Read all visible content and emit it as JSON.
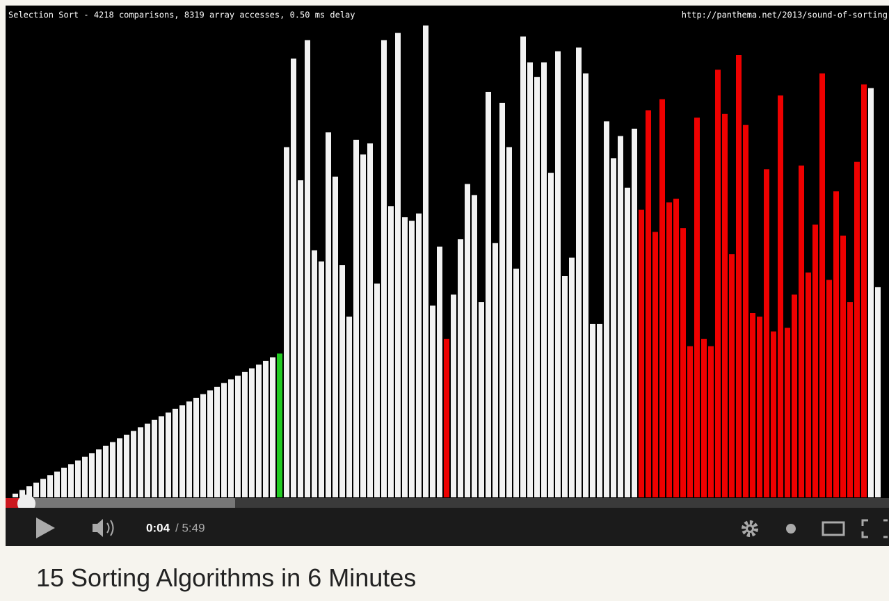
{
  "video": {
    "overlay_title": "Selection Sort - 4218 comparisons, 8319 array accesses, 0.50 ms delay",
    "overlay_url": "http://panthema.net/2013/sound-of-sorting",
    "bars": [
      {
        "color": "#f2f2f2",
        "values": [
          1,
          2,
          3,
          4,
          5,
          6,
          7,
          8,
          9,
          10,
          11,
          12,
          13,
          14,
          15,
          16,
          17,
          18,
          19,
          20,
          21,
          22,
          23,
          24,
          25,
          26,
          27,
          28,
          29,
          30,
          31,
          32,
          33,
          34,
          35,
          36,
          37,
          38
        ]
      },
      {
        "color": "#22cc22",
        "values": [
          39
        ]
      },
      {
        "color": "#f2f2f2",
        "values": [
          95,
          119,
          86,
          124,
          67,
          64,
          99,
          87,
          63,
          49,
          97,
          93,
          96,
          58,
          124,
          79,
          126,
          76,
          75,
          77,
          128,
          52,
          68
        ]
      },
      {
        "color": "#ee0000",
        "values": [
          43
        ]
      },
      {
        "color": "#f2f2f2",
        "values": [
          55,
          70,
          85,
          82,
          53,
          110,
          69,
          107,
          95,
          62,
          125,
          118,
          114,
          118,
          88,
          121,
          60,
          65,
          122,
          115,
          47,
          47,
          102,
          92,
          98,
          84,
          100
        ]
      },
      {
        "color": "#ee0000",
        "values": [
          78,
          105,
          72,
          108,
          80,
          81,
          73,
          41,
          103,
          43,
          41,
          116,
          104,
          66,
          120,
          101,
          50,
          49,
          89,
          45,
          109,
          46,
          55,
          90,
          61,
          74,
          115,
          59,
          83,
          71,
          53,
          91,
          112
        ]
      },
      {
        "color": "#f2f2f2",
        "values": [
          111,
          57
        ]
      }
    ]
  },
  "controls": {
    "current_time": "0:04",
    "duration": "/ 5:49"
  },
  "page": {
    "title": "15 Sorting Algorithms in 6 Minutes"
  }
}
